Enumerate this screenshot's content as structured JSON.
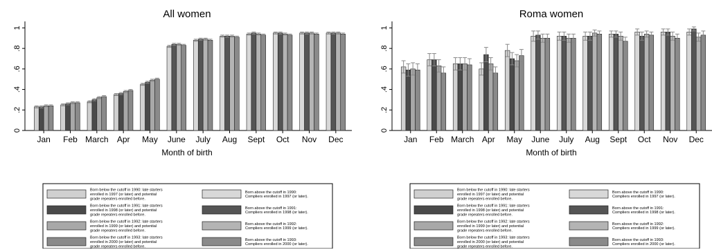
{
  "chart_data": [
    {
      "type": "bar",
      "title": "All women",
      "xlabel": "Month of birth",
      "ylabel": "",
      "ylim": [
        0,
        1.05
      ],
      "yticks": [
        0,
        0.2,
        0.4,
        0.6,
        0.8,
        1
      ],
      "ytick_labels": [
        "0",
        ".2",
        ".4",
        ".6",
        ".8",
        "1"
      ],
      "categories": [
        "Jan",
        "Feb",
        "March",
        "Apr",
        "May",
        "June",
        "July",
        "Aug",
        "Sept",
        "Oct",
        "Nov",
        "Dec"
      ],
      "series": [
        {
          "name": "1990",
          "values": [
            0.23,
            0.25,
            0.28,
            0.35,
            0.45,
            0.82,
            0.88,
            0.92,
            0.94,
            0.95,
            0.95,
            0.95
          ]
        },
        {
          "name": "1991",
          "values": [
            0.23,
            0.26,
            0.3,
            0.36,
            0.47,
            0.84,
            0.89,
            0.92,
            0.95,
            0.95,
            0.95,
            0.95
          ]
        },
        {
          "name": "1992",
          "values": [
            0.24,
            0.27,
            0.32,
            0.38,
            0.49,
            0.84,
            0.89,
            0.92,
            0.94,
            0.94,
            0.95,
            0.95
          ]
        },
        {
          "name": "1993",
          "values": [
            0.24,
            0.27,
            0.33,
            0.39,
            0.5,
            0.83,
            0.88,
            0.91,
            0.93,
            0.93,
            0.94,
            0.94
          ]
        }
      ],
      "errors": [
        [
          0.01,
          0.01,
          0.01,
          0.01,
          0.01,
          0.01,
          0.01,
          0.01,
          0.01,
          0.01,
          0.01,
          0.01
        ],
        [
          0.01,
          0.01,
          0.01,
          0.01,
          0.01,
          0.01,
          0.01,
          0.01,
          0.01,
          0.01,
          0.01,
          0.01
        ],
        [
          0.01,
          0.01,
          0.01,
          0.01,
          0.01,
          0.01,
          0.01,
          0.01,
          0.01,
          0.01,
          0.01,
          0.01
        ],
        [
          0.01,
          0.01,
          0.01,
          0.01,
          0.01,
          0.01,
          0.01,
          0.01,
          0.01,
          0.01,
          0.01,
          0.01
        ]
      ],
      "grid": false
    },
    {
      "type": "bar",
      "title": "Roma women",
      "xlabel": "Month of birth",
      "ylabel": "",
      "ylim": [
        0,
        1.05
      ],
      "yticks": [
        0,
        0.2,
        0.4,
        0.6,
        0.8,
        1
      ],
      "ytick_labels": [
        "0",
        ".2",
        ".4",
        ".6",
        ".8",
        "1"
      ],
      "categories": [
        "Jan",
        "Feb",
        "March",
        "Apr",
        "May",
        "June",
        "July",
        "Aug",
        "Sept",
        "Oct",
        "Nov",
        "Dec"
      ],
      "series": [
        {
          "name": "1990",
          "values": [
            0.62,
            0.69,
            0.65,
            0.6,
            0.78,
            0.92,
            0.92,
            0.92,
            0.94,
            0.96,
            0.96,
            0.96
          ]
        },
        {
          "name": "1991",
          "values": [
            0.59,
            0.69,
            0.65,
            0.74,
            0.7,
            0.93,
            0.92,
            0.92,
            0.94,
            0.92,
            0.96,
            0.99
          ]
        },
        {
          "name": "1992",
          "values": [
            0.6,
            0.63,
            0.65,
            0.65,
            0.68,
            0.9,
            0.9,
            0.95,
            0.92,
            0.94,
            0.92,
            0.91
          ]
        },
        {
          "name": "1993",
          "values": [
            0.59,
            0.56,
            0.64,
            0.56,
            0.73,
            0.9,
            0.9,
            0.94,
            0.87,
            0.93,
            0.9,
            0.93
          ]
        }
      ],
      "errors": [
        [
          0.06,
          0.06,
          0.06,
          0.06,
          0.06,
          0.05,
          0.04,
          0.04,
          0.03,
          0.03,
          0.03,
          0.03
        ],
        [
          0.06,
          0.06,
          0.06,
          0.07,
          0.06,
          0.04,
          0.04,
          0.04,
          0.03,
          0.04,
          0.03,
          0.02
        ],
        [
          0.06,
          0.06,
          0.06,
          0.06,
          0.06,
          0.04,
          0.04,
          0.03,
          0.04,
          0.03,
          0.04,
          0.04
        ],
        [
          0.06,
          0.06,
          0.06,
          0.06,
          0.06,
          0.04,
          0.04,
          0.03,
          0.04,
          0.03,
          0.04,
          0.04
        ]
      ],
      "grid": false
    }
  ],
  "legend": {
    "entries": [
      {
        "text": [
          "Born below the cutoff in 1990: late starters",
          "enrolled in 1997 (or later) and potential",
          "grade repeaters enrolled before."
        ],
        "color": "#d0d0d0"
      },
      {
        "text": [
          "Born above the cutoff in 1990:",
          "Compliers enrolled in 1997 (or later)."
        ],
        "color": "#d8d8d8"
      },
      {
        "text": [
          "Born below the cutoff in 1991: late starters",
          "enrolled in 1998 (or later) and potential",
          "grade repeaters enrolled before."
        ],
        "color": "#4a4a4a"
      },
      {
        "text": [
          "Born above the cutoff in 1991:",
          "Compliers enrolled in 1998 (or later)."
        ],
        "color": "#555555"
      },
      {
        "text": [
          "Born below the cutoff in 1992: late starters",
          "enrolled in 1999 (or later) and potential",
          "grade repeaters enrolled before."
        ],
        "color": "#a8a8a8"
      },
      {
        "text": [
          "Born above the cutoff in 1992:",
          "Compliers enrolled in 1999 (or later)."
        ],
        "color": "#b4b4b4"
      },
      {
        "text": [
          "Born below the cutoff in 1993: late starters",
          "enrolled in 2000 (or later) and potential",
          "grade repeaters enrolled before."
        ],
        "color": "#8a8a8a"
      },
      {
        "text": [
          "Born above the cutoff in 1993:",
          "Compliers enrolled in 2000 (or later)."
        ],
        "color": "#8a8a8a"
      }
    ]
  },
  "colors": {
    "below": [
      "#d0d0d0",
      "#4a4a4a",
      "#a8a8a8",
      "#8a8a8a"
    ],
    "above": [
      "#d8d8d8",
      "#555555",
      "#b4b4b4",
      "#8a8a8a"
    ],
    "error_bar": "#888888"
  }
}
